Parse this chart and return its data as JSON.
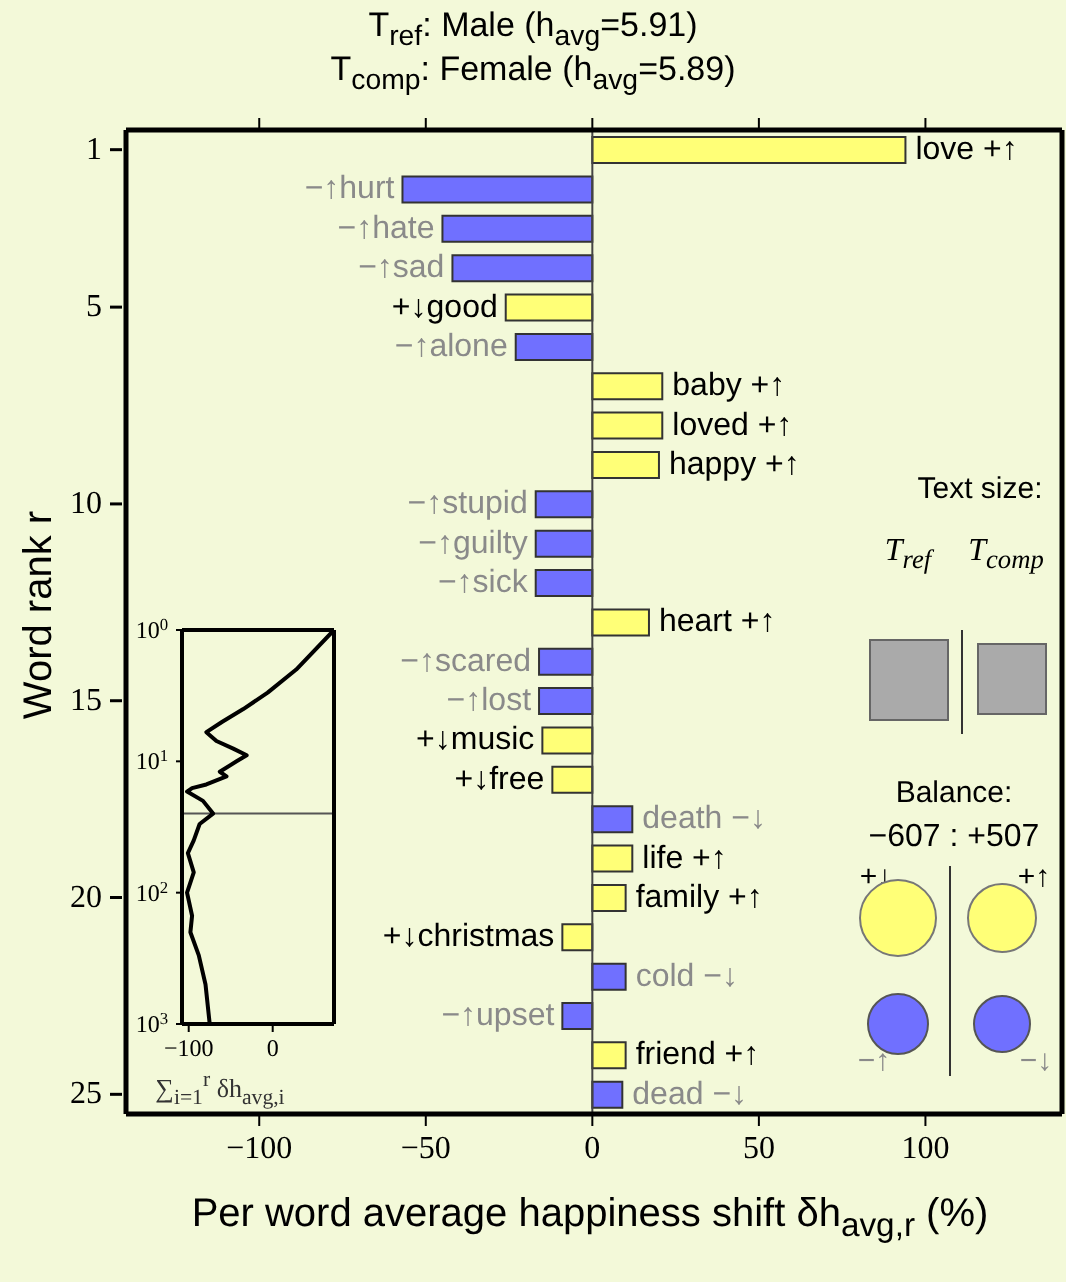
{
  "chart_data": [
    {
      "type": "bar",
      "orientation": "horizontal",
      "title": "T$_{ref}$: Male (h$_{avg}$=5.91)",
      "subtitle": "T$_{comp}$: Female (h$_{avg}$=5.89)",
      "xlabel": "Per word average happiness shift δh$_{avg,r}$ (%)",
      "ylabel": "Word rank r",
      "categories": [
        "1",
        null,
        null,
        null,
        "5",
        null,
        null,
        null,
        null,
        "10",
        null,
        null,
        null,
        null,
        "15",
        null,
        null,
        null,
        null,
        "20",
        null,
        null,
        null,
        null,
        "25"
      ],
      "values": [
        94,
        -57,
        -45,
        -42,
        -26,
        -23,
        21,
        21,
        20,
        -17,
        -17,
        -17,
        17,
        -16,
        -16,
        -15,
        -12,
        12,
        12,
        10,
        -9,
        10,
        -9,
        10,
        9
      ],
      "colors": [
        "#ffff77",
        "#7070ff",
        "#7070ff",
        "#7070ff",
        "#ffff77",
        "#7070ff",
        "#ffff77",
        "#ffff77",
        "#ffff77",
        "#7070ff",
        "#7070ff",
        "#7070ff",
        "#ffff77",
        "#7070ff",
        "#7070ff",
        "#ffff77",
        "#ffff77",
        "#7070ff",
        "#ffff77",
        "#ffff77",
        "#ffff77",
        "#7070ff",
        "#7070ff",
        "#ffff77",
        "#7070ff"
      ],
      "value_labels": [
        "love +↑",
        "−↑hurt",
        "−↑hate",
        "−↑sad",
        "+↓good",
        "−↑alone",
        "baby +↑",
        "loved +↑",
        "happy +↑",
        "−↑stupid",
        "−↑guilty",
        "−↑sick",
        "heart +↑",
        "−↑scared",
        "−↑lost",
        "+↓music",
        "+↓free",
        "death −↓",
        "life +↑",
        "family +↑",
        "+↓christmas",
        "cold −↓",
        "−↑upset",
        "friend +↑",
        "dead −↓"
      ],
      "xlim": [
        -140,
        141
      ],
      "xticks": [
        -100,
        -50,
        0,
        50,
        100
      ],
      "ref_lines": [
        {
          "axis": "x",
          "value": 0
        }
      ]
    },
    {
      "type": "line",
      "xlabel": "∑$_{i=1}$$^{r}$ δh$_{avg,i}$",
      "log": "y",
      "series": [
        {
          "color": "#000000",
          "x": [
            73,
            28,
            -6,
            -35,
            -60,
            -79,
            -67,
            -47,
            -31,
            -43,
            -63,
            -55,
            -79,
            -96,
            -102,
            -83,
            -71,
            -87,
            -94,
            -101,
            -94,
            -102,
            -96,
            -98,
            -88,
            -80,
            -75
          ],
          "values": [
            1,
            2,
            3,
            4,
            5,
            6,
            7,
            8,
            9,
            10,
            12,
            13,
            15,
            16,
            17,
            20,
            25,
            30,
            40,
            50,
            70,
            100,
            150,
            200,
            300,
            500,
            1000
          ]
        }
      ],
      "xlim": [
        -108,
        73
      ],
      "xticks": [
        -100,
        0
      ],
      "ylim": [
        1000,
        1
      ],
      "yticks": [
        {
          "value": 1,
          "label": "10$^{0}$"
        },
        {
          "value": 10,
          "label": "10$^{1}$"
        },
        {
          "value": 100,
          "label": "10$^{2}$"
        },
        {
          "value": 1000,
          "label": "10$^{3}$"
        }
      ],
      "ref_lines": [
        {
          "axis": "y",
          "value": 25
        }
      ]
    },
    {
      "type": "other",
      "annotations": [
        "Text size:",
        "T$_{ref}$",
        "T$_{comp}$",
        "Balance:",
        "−607 : +507",
        "+↓",
        "+↑",
        "−↑",
        "−↓"
      ]
    }
  ]
}
